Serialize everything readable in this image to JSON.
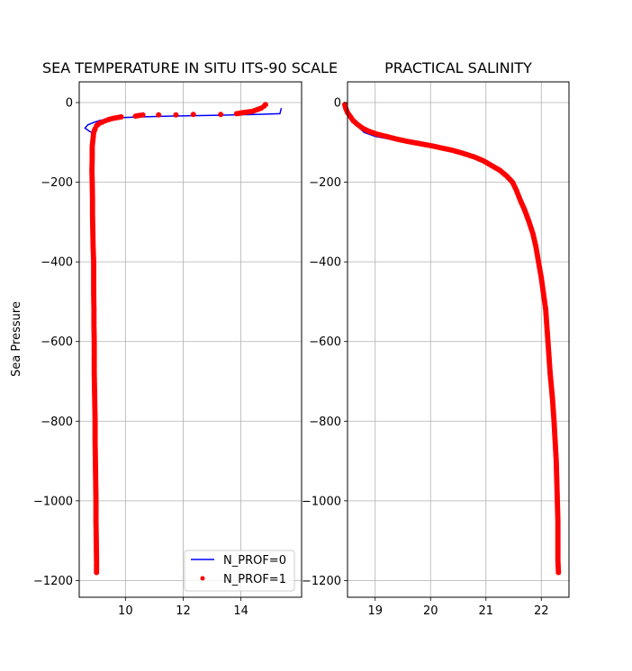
{
  "chart_data": [
    {
      "type": "line",
      "title": "SEA TEMPERATURE IN SITU ITS-90 SCALE",
      "xlabel": "",
      "ylabel": "Sea Pressure",
      "xlim": [
        8.4,
        16.1
      ],
      "ylim": [
        -1242,
        52
      ],
      "xticks": [
        10,
        12,
        14
      ],
      "yticks": [
        0,
        -200,
        -400,
        -600,
        -800,
        -1000,
        -1200
      ],
      "grid": true,
      "legend": "lower-right",
      "series": [
        {
          "name": "N_PROF=0",
          "style": "line",
          "color": "#0000ff",
          "x": [
            15.4,
            15.35,
            14.5,
            13.0,
            11.5,
            10.5,
            9.8,
            9.4,
            9.1,
            8.9,
            8.7,
            8.6,
            8.75,
            8.9
          ],
          "y": [
            -14,
            -28,
            -30,
            -32,
            -34,
            -36,
            -38,
            -41,
            -45,
            -50,
            -56,
            -64,
            -72,
            -78
          ]
        },
        {
          "name": "N_PROF=1",
          "style": "dots",
          "color": "#ff0000",
          "x": [
            14.85,
            14.8,
            14.7,
            14.55,
            14.4,
            14.1,
            13.85,
            13.3,
            12.35,
            11.75,
            11.15,
            10.6,
            10.5,
            10.35,
            9.85,
            9.7,
            9.55,
            9.4,
            9.3,
            9.2,
            9.1,
            9.0,
            8.95,
            8.9,
            8.88,
            8.85,
            8.85,
            8.84,
            8.85,
            8.86,
            8.86,
            8.87,
            8.88,
            8.9,
            8.9,
            8.9,
            8.91,
            8.91,
            8.92,
            8.92,
            8.92,
            8.93,
            8.94,
            8.95,
            8.95,
            8.96,
            8.97,
            8.98,
            8.98,
            8.99,
            9.0,
            9.0
          ],
          "y": [
            -5,
            -9,
            -14,
            -18,
            -22,
            -25,
            -28,
            -30,
            -30,
            -31,
            -31,
            -31,
            -32,
            -34,
            -36,
            -38,
            -40,
            -43,
            -46,
            -49,
            -52,
            -58,
            -66,
            -75,
            -90,
            -110,
            -140,
            -170,
            -200,
            -240,
            -280,
            -320,
            -360,
            -400,
            -440,
            -480,
            -520,
            -560,
            -600,
            -640,
            -680,
            -720,
            -760,
            -800,
            -850,
            -900,
            -950,
            -1000,
            -1050,
            -1100,
            -1150,
            -1180
          ]
        }
      ]
    },
    {
      "type": "line",
      "title": "PRACTICAL SALINITY",
      "xlabel": "",
      "ylabel": "",
      "xlim": [
        18.5,
        22.5
      ],
      "ylim": [
        -1242,
        52
      ],
      "xticks": [
        19,
        20,
        21,
        22
      ],
      "yticks": [
        0,
        -200,
        -400,
        -600,
        -800,
        -1000,
        -1200
      ],
      "grid": true,
      "series": [
        {
          "name": "N_PROF=0",
          "style": "line",
          "color": "#0000ff",
          "x": [
            18.45,
            18.5,
            18.6,
            18.7,
            18.8,
            19.0,
            19.3
          ],
          "y": [
            -5,
            -25,
            -45,
            -62,
            -75,
            -85,
            -93
          ]
        },
        {
          "name": "N_PROF=1",
          "style": "dots",
          "color": "#ff0000",
          "x": [
            18.45,
            18.47,
            18.5,
            18.55,
            18.6,
            18.68,
            18.78,
            18.9,
            19.05,
            19.2,
            19.4,
            19.6,
            19.8,
            20.0,
            20.2,
            20.4,
            20.6,
            20.8,
            20.95,
            21.1,
            21.25,
            21.38,
            21.48,
            21.55,
            21.62,
            21.7,
            21.78,
            21.85,
            21.9,
            21.95,
            22.0,
            22.04,
            22.08,
            22.1,
            22.13,
            22.16,
            22.2,
            22.23,
            22.25,
            22.27,
            22.28,
            22.29,
            22.3,
            22.3,
            22.3,
            22.31
          ],
          "y": [
            -5,
            -15,
            -25,
            -35,
            -45,
            -55,
            -65,
            -73,
            -80,
            -85,
            -92,
            -98,
            -103,
            -108,
            -114,
            -120,
            -128,
            -137,
            -146,
            -158,
            -170,
            -185,
            -200,
            -220,
            -245,
            -270,
            -300,
            -330,
            -360,
            -400,
            -440,
            -480,
            -520,
            -560,
            -620,
            -680,
            -740,
            -800,
            -850,
            -900,
            -950,
            -1000,
            -1050,
            -1100,
            -1150,
            -1180
          ]
        }
      ]
    }
  ]
}
